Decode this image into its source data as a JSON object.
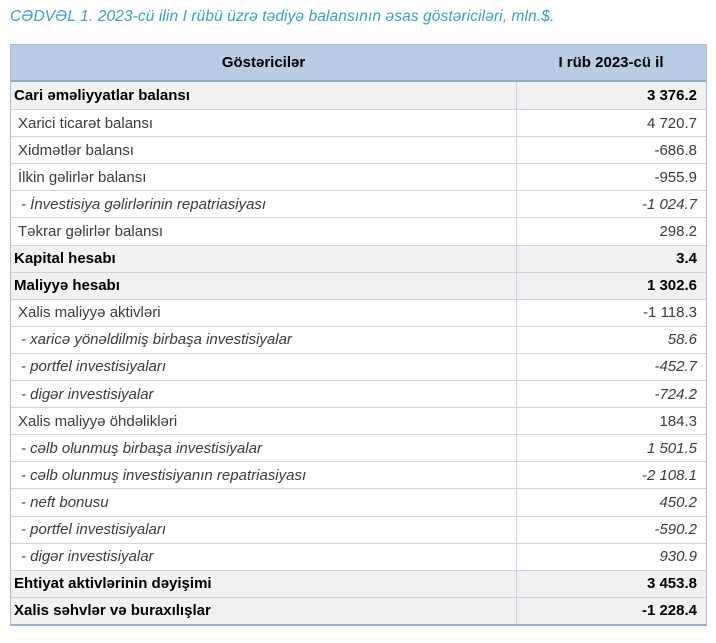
{
  "title": "CƏDVƏL 1. 2023-cü ilin I rübü üzrə tədiyə balansının əsas göstəriciləri, mln.$.",
  "colors": {
    "header_bg": "#b8cce4",
    "summary_row_bg": "#f1f1f1",
    "outer_border": "#a7bedb",
    "row_separator": "#c8d5e6",
    "bottom_border": "#95b3d7",
    "title_color": "#3aa3b7",
    "text_regular": "#3b3b3b",
    "text_bold": "#000000"
  },
  "table": {
    "columns": [
      "Göstəricilər",
      "I rüb 2023-cü il"
    ],
    "rows": [
      {
        "label": "Cari əməliyyatlar balansı",
        "value": "3 376.2",
        "style": "bold"
      },
      {
        "label": "Xarici ticarət balansı",
        "value": "4 720.7",
        "style": "regular"
      },
      {
        "label": "Xidmətlər balansı",
        "value": "-686.8",
        "style": "regular"
      },
      {
        "label": "İlkin gəlirlər balansı",
        "value": "-955.9",
        "style": "regular"
      },
      {
        "label": "- İnvestisiya gəlirlərinin repatriasiyası",
        "value": "-1 024.7",
        "style": "italic"
      },
      {
        "label": "Təkrar gəlirlər balansı",
        "value": "298.2",
        "style": "regular"
      },
      {
        "label": "Kapital hesabı",
        "value": "3.4",
        "style": "bold"
      },
      {
        "label": "Maliyyə hesabı",
        "value": "1 302.6",
        "style": "bold"
      },
      {
        "label": "Xalis maliyyə aktivləri",
        "value": "-1 118.3",
        "style": "regular"
      },
      {
        "label": "- xaricə yönəldilmiş birbaşa investisiyalar",
        "value": "58.6",
        "style": "italic"
      },
      {
        "label": "- portfel investisiyaları",
        "value": "-452.7",
        "style": "italic"
      },
      {
        "label": "- digər investisiyalar",
        "value": "-724.2",
        "style": "italic"
      },
      {
        "label": "Xalis maliyyə öhdəlikləri",
        "value": "184.3",
        "style": "regular"
      },
      {
        "label": "- cəlb olunmuş birbaşa investisiyalar",
        "value": "1 501.5",
        "style": "italic"
      },
      {
        "label": "- cəlb olunmuş investisiyanın repatriasiyası",
        "value": "-2 108.1",
        "style": "italic"
      },
      {
        "label": "- neft bonusu",
        "value": "450.2",
        "style": "italic"
      },
      {
        "label": "- portfel investisiyaları",
        "value": "-590.2",
        "style": "italic"
      },
      {
        "label": "- digər investisiyalar",
        "value": "930.9",
        "style": "italic"
      },
      {
        "label": "Ehtiyat aktivlərinin dəyişimi",
        "value": "3 453.8",
        "style": "bold"
      },
      {
        "label": "Xalis səhvlər və buraxılışlar",
        "value": "-1 228.4",
        "style": "bold"
      }
    ]
  }
}
